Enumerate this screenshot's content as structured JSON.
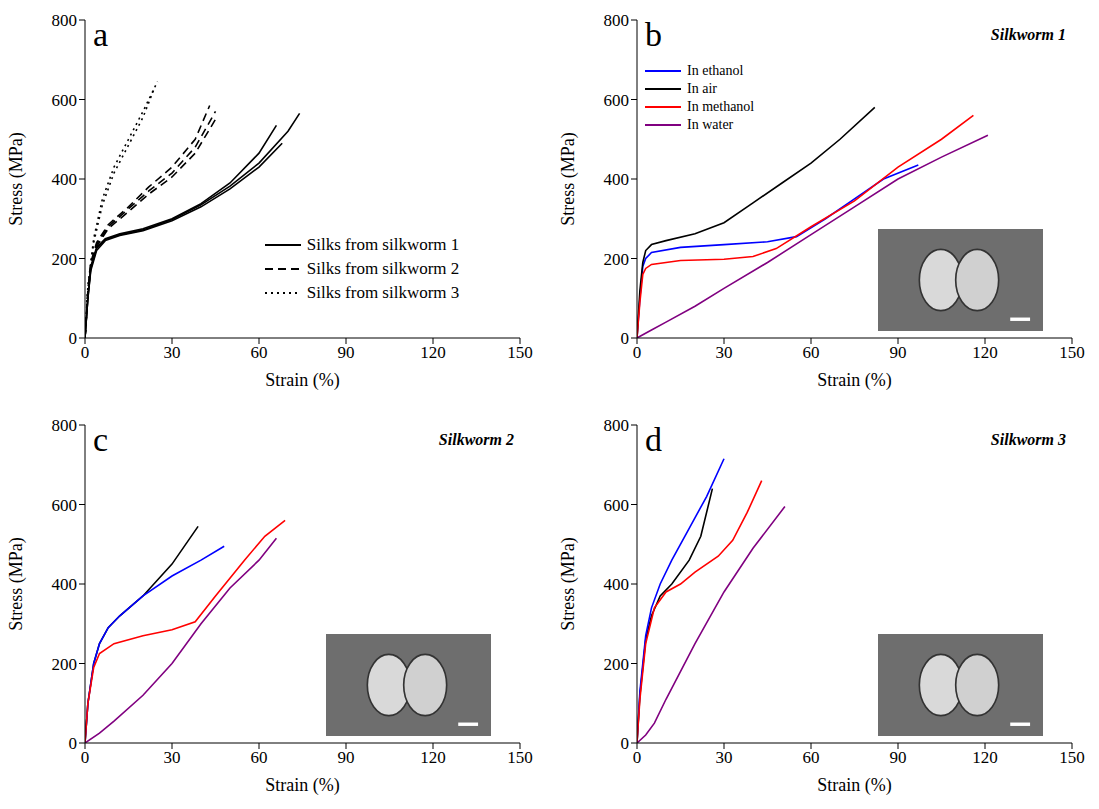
{
  "chart_data": [
    {
      "type": "line",
      "panel": "a",
      "x_label": "Strain (%)",
      "y_label": "Stress (MPa)",
      "xlim": [
        0,
        150
      ],
      "ylim": [
        0,
        800
      ],
      "xticks": [
        0,
        30,
        60,
        90,
        120,
        150
      ],
      "yticks": [
        0,
        200,
        400,
        600,
        800
      ],
      "legend": "lower right",
      "series": [
        {
          "name": "Silks from silkworm 1",
          "color": "#000000",
          "line_style": "solid",
          "curves": [
            {
              "x": [
                0,
                1,
                2,
                4,
                7,
                12,
                20,
                30,
                40,
                50,
                60,
                68
              ],
              "values": [
                0,
                100,
                170,
                220,
                245,
                258,
                270,
                295,
                330,
                375,
                430,
                490
              ]
            },
            {
              "x": [
                0,
                1,
                2,
                4,
                7,
                12,
                20,
                30,
                40,
                50,
                60,
                70,
                74
              ],
              "values": [
                0,
                100,
                175,
                225,
                248,
                260,
                272,
                298,
                335,
                382,
                440,
                520,
                565
              ]
            },
            {
              "x": [
                0,
                1,
                2,
                4,
                7,
                12,
                20,
                30,
                40,
                50,
                60,
                66
              ],
              "values": [
                0,
                105,
                180,
                228,
                250,
                262,
                275,
                300,
                338,
                390,
                465,
                535
              ]
            }
          ]
        },
        {
          "name": "Silks from silkworm 2",
          "color": "#000000",
          "line_style": "dashed",
          "curves": [
            {
              "x": [
                0,
                1,
                2,
                4,
                8,
                15,
                22,
                30,
                38,
                43
              ],
              "values": [
                0,
                120,
                190,
                240,
                285,
                330,
                380,
                430,
                500,
                585
              ]
            },
            {
              "x": [
                0,
                1,
                2,
                4,
                8,
                15,
                22,
                30,
                38,
                45
              ],
              "values": [
                0,
                115,
                185,
                235,
                280,
                325,
                370,
                415,
                480,
                570
              ]
            },
            {
              "x": [
                0,
                1,
                2,
                4,
                8,
                15,
                22,
                30,
                38,
                45
              ],
              "values": [
                0,
                110,
                180,
                230,
                275,
                318,
                362,
                405,
                465,
                550
              ]
            }
          ]
        },
        {
          "name": "Silks from silkworm 3",
          "color": "#000000",
          "line_style": "dotted",
          "curves": [
            {
              "x": [
                0,
                1,
                3,
                6,
                10,
                15,
                20,
                25
              ],
              "values": [
                0,
                130,
                250,
                350,
                430,
                500,
                570,
                645
              ]
            },
            {
              "x": [
                0,
                1,
                3,
                6,
                10,
                15,
                20,
                24
              ],
              "values": [
                0,
                125,
                240,
                335,
                415,
                485,
                555,
                630
              ]
            }
          ]
        }
      ]
    },
    {
      "type": "line",
      "panel": "b",
      "title": "Silkworm 1",
      "x_label": "Strain (%)",
      "y_label": "Stress (MPa)",
      "xlim": [
        0,
        150
      ],
      "ylim": [
        0,
        800
      ],
      "xticks": [
        0,
        30,
        60,
        90,
        120,
        150
      ],
      "yticks": [
        0,
        200,
        400,
        600,
        800
      ],
      "legend": "upper left",
      "series": [
        {
          "name": "In ethanol",
          "color": "#0000ff",
          "x": [
            0,
            1,
            2,
            3,
            5,
            15,
            30,
            45,
            55,
            65,
            75,
            85,
            97
          ],
          "values": [
            0,
            100,
            180,
            200,
            215,
            228,
            235,
            242,
            255,
            300,
            350,
            400,
            435
          ]
        },
        {
          "name": "In air",
          "color": "#000000",
          "x": [
            0,
            1,
            2,
            3,
            5,
            10,
            20,
            30,
            40,
            50,
            60,
            70,
            82
          ],
          "values": [
            0,
            120,
            190,
            220,
            235,
            245,
            262,
            290,
            340,
            390,
            440,
            500,
            580
          ]
        },
        {
          "name": "In methanol",
          "color": "#ff0000",
          "x": [
            0,
            1,
            2,
            3,
            5,
            15,
            30,
            40,
            48,
            60,
            75,
            90,
            105,
            116
          ],
          "values": [
            0,
            90,
            160,
            175,
            185,
            195,
            198,
            205,
            225,
            280,
            345,
            430,
            500,
            560
          ]
        },
        {
          "name": "In water",
          "color": "#800080",
          "x": [
            0,
            5,
            10,
            20,
            30,
            45,
            60,
            75,
            90,
            105,
            121
          ],
          "values": [
            0,
            20,
            40,
            80,
            125,
            190,
            260,
            330,
            400,
            455,
            510
          ]
        }
      ]
    },
    {
      "type": "line",
      "panel": "c",
      "title": "Silkworm 2",
      "x_label": "Strain (%)",
      "y_label": "Stress (MPa)",
      "xlim": [
        0,
        150
      ],
      "ylim": [
        0,
        800
      ],
      "xticks": [
        0,
        30,
        60,
        90,
        120,
        150
      ],
      "yticks": [
        0,
        200,
        400,
        600,
        800
      ],
      "series": [
        {
          "color": "#000000",
          "x": [
            0,
            1,
            3,
            5,
            8,
            12,
            20,
            30,
            39
          ],
          "values": [
            0,
            100,
            200,
            250,
            290,
            320,
            370,
            450,
            545
          ]
        },
        {
          "color": "#0000ff",
          "x": [
            0,
            1,
            3,
            5,
            8,
            12,
            20,
            30,
            40,
            48
          ],
          "values": [
            0,
            100,
            200,
            250,
            290,
            320,
            370,
            420,
            460,
            495
          ]
        },
        {
          "color": "#ff0000",
          "x": [
            0,
            1,
            3,
            5,
            10,
            20,
            30,
            38,
            45,
            55,
            62,
            69
          ],
          "values": [
            0,
            100,
            190,
            225,
            250,
            270,
            285,
            305,
            370,
            460,
            520,
            560
          ]
        },
        {
          "color": "#800080",
          "x": [
            0,
            5,
            10,
            20,
            30,
            40,
            50,
            60,
            66
          ],
          "values": [
            0,
            25,
            55,
            120,
            200,
            300,
            390,
            460,
            515
          ]
        }
      ]
    },
    {
      "type": "line",
      "panel": "d",
      "title": "Silkworm 3",
      "x_label": "Strain (%)",
      "y_label": "Stress (MPa)",
      "xlim": [
        0,
        150
      ],
      "ylim": [
        0,
        800
      ],
      "xticks": [
        0,
        30,
        60,
        90,
        120,
        150
      ],
      "yticks": [
        0,
        200,
        400,
        600,
        800
      ],
      "series": [
        {
          "color": "#000000",
          "x": [
            0,
            1,
            3,
            5,
            8,
            12,
            18,
            22,
            26
          ],
          "values": [
            0,
            120,
            260,
            320,
            370,
            400,
            460,
            520,
            640
          ]
        },
        {
          "color": "#0000ff",
          "x": [
            0,
            1,
            3,
            5,
            8,
            12,
            18,
            24,
            30
          ],
          "values": [
            0,
            130,
            270,
            340,
            400,
            460,
            540,
            620,
            715
          ]
        },
        {
          "color": "#ff0000",
          "x": [
            0,
            1,
            3,
            6,
            10,
            15,
            20,
            28,
            33,
            38,
            43
          ],
          "values": [
            0,
            110,
            250,
            340,
            380,
            400,
            430,
            470,
            510,
            580,
            660
          ]
        },
        {
          "color": "#800080",
          "x": [
            0,
            3,
            6,
            10,
            20,
            30,
            40,
            51
          ],
          "values": [
            0,
            20,
            50,
            110,
            250,
            380,
            490,
            595
          ]
        }
      ]
    }
  ]
}
